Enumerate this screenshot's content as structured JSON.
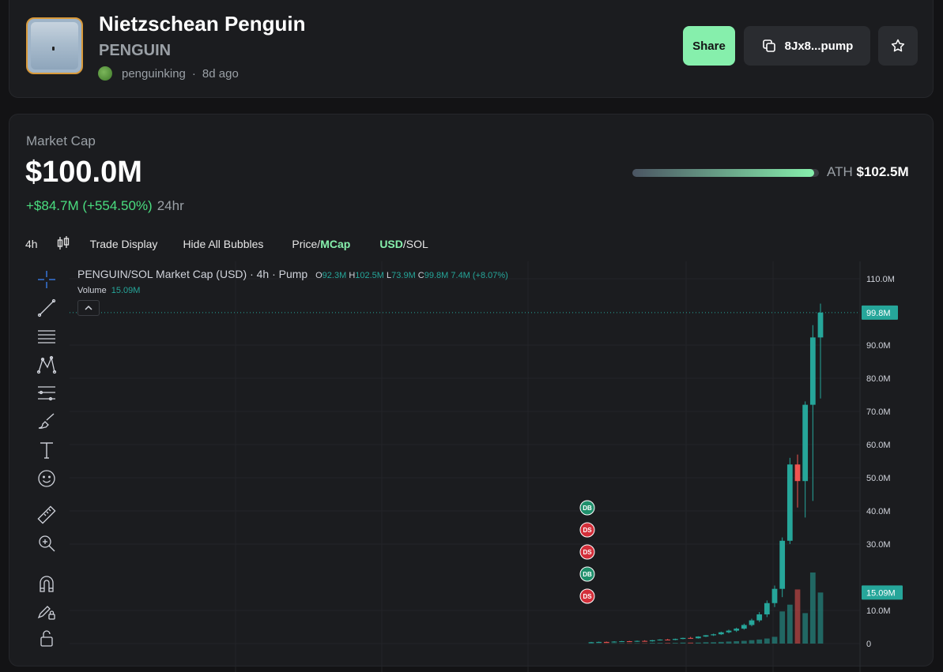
{
  "token": {
    "name": "Nietzschean Penguin",
    "ticker": "PENGUIN",
    "creator": "penguinking",
    "age": "8d ago"
  },
  "actions": {
    "share_label": "Share",
    "address_label": "8Jx8...pump"
  },
  "market": {
    "label": "Market Cap",
    "value": "$100.0M",
    "change": "+$84.7M (+554.50%)",
    "period": "24hr",
    "ath_label": "ATH",
    "ath_value": "$102.5M",
    "ath_progress": 0.976
  },
  "toolbar": {
    "interval": "4h",
    "trade_display": "Trade Display",
    "hide_bubbles": "Hide All Bubbles",
    "price_label": "Price",
    "mcap_label": "MCap",
    "usd_label": "USD",
    "sol_label": "SOL",
    "slash": "/"
  },
  "chart_legend": {
    "title": "PENGUIN/SOL Market Cap (USD) · 4h · Pump",
    "o_label": "O",
    "o_value": "92.3M",
    "h_label": "H",
    "h_value": "102.5M",
    "l_label": "L",
    "l_value": "73.9M",
    "c_label": "C",
    "c_value": "99.8M",
    "change": "7.4M (+8.07%)",
    "volume_label": "Volume",
    "volume_value": "15.09M"
  },
  "colors": {
    "up": "#26a69a",
    "down": "#ef5350",
    "accent": "#86efac"
  },
  "chart_data": {
    "type": "candlestick",
    "y_axis_ticks": [
      "110.0M",
      "90.0M",
      "80.0M",
      "70.0M",
      "60.0M",
      "50.0M",
      "40.0M",
      "30.0M",
      "10.0M",
      "0"
    ],
    "ylim": [
      0,
      110
    ],
    "y_unit": "M",
    "last_price_label": "99.8M",
    "last_price": 99.8,
    "volume_label": "15.09M",
    "bubbles": [
      {
        "label": "DB",
        "side": "buy"
      },
      {
        "label": "DS",
        "side": "sell"
      },
      {
        "label": "DS",
        "side": "sell"
      },
      {
        "label": "DB",
        "side": "buy"
      },
      {
        "label": "DS",
        "side": "sell"
      }
    ],
    "candles": [
      {
        "o": 0.3,
        "h": 0.5,
        "l": 0.2,
        "c": 0.4
      },
      {
        "o": 0.4,
        "h": 0.6,
        "l": 0.3,
        "c": 0.5
      },
      {
        "o": 0.5,
        "h": 0.6,
        "l": 0.3,
        "c": 0.4
      },
      {
        "o": 0.4,
        "h": 0.7,
        "l": 0.3,
        "c": 0.6
      },
      {
        "o": 0.6,
        "h": 0.8,
        "l": 0.5,
        "c": 0.7
      },
      {
        "o": 0.7,
        "h": 0.8,
        "l": 0.5,
        "c": 0.6
      },
      {
        "o": 0.6,
        "h": 0.9,
        "l": 0.5,
        "c": 0.8
      },
      {
        "o": 0.8,
        "h": 1.0,
        "l": 0.6,
        "c": 0.7
      },
      {
        "o": 0.7,
        "h": 1.1,
        "l": 0.6,
        "c": 1.0
      },
      {
        "o": 1.0,
        "h": 1.3,
        "l": 0.9,
        "c": 1.2
      },
      {
        "o": 1.2,
        "h": 1.4,
        "l": 1.0,
        "c": 1.1
      },
      {
        "o": 1.1,
        "h": 1.5,
        "l": 1.0,
        "c": 1.4
      },
      {
        "o": 1.4,
        "h": 1.8,
        "l": 1.3,
        "c": 1.7
      },
      {
        "o": 1.7,
        "h": 2.0,
        "l": 1.5,
        "c": 1.6
      },
      {
        "o": 1.6,
        "h": 2.2,
        "l": 1.5,
        "c": 2.1
      },
      {
        "o": 2.1,
        "h": 2.6,
        "l": 2.0,
        "c": 2.5
      },
      {
        "o": 2.5,
        "h": 3.0,
        "l": 2.3,
        "c": 2.8
      },
      {
        "o": 2.8,
        "h": 3.6,
        "l": 2.6,
        "c": 3.4
      },
      {
        "o": 3.4,
        "h": 4.2,
        "l": 3.1,
        "c": 3.9
      },
      {
        "o": 3.9,
        "h": 4.8,
        "l": 3.5,
        "c": 4.5
      },
      {
        "o": 4.5,
        "h": 6.0,
        "l": 4.2,
        "c": 5.6
      },
      {
        "o": 5.6,
        "h": 7.5,
        "l": 5.2,
        "c": 7.0
      },
      {
        "o": 7.0,
        "h": 9.5,
        "l": 6.5,
        "c": 8.8
      },
      {
        "o": 8.8,
        "h": 13.0,
        "l": 8.0,
        "c": 12.2
      },
      {
        "o": 12.2,
        "h": 17.5,
        "l": 11.0,
        "c": 16.5
      },
      {
        "o": 16.5,
        "h": 32.0,
        "l": 14.0,
        "c": 31.0
      },
      {
        "o": 31.0,
        "h": 56.0,
        "l": 30.0,
        "c": 54.0
      },
      {
        "o": 54.0,
        "h": 57.0,
        "l": 41.0,
        "c": 49.0
      },
      {
        "o": 49.0,
        "h": 73.0,
        "l": 38.0,
        "c": 72.0
      },
      {
        "o": 72.0,
        "h": 96.0,
        "l": 43.0,
        "c": 92.3
      },
      {
        "o": 92.3,
        "h": 102.5,
        "l": 73.9,
        "c": 99.8
      }
    ],
    "volumes": [
      0.1,
      0.1,
      0.1,
      0.1,
      0.1,
      0.1,
      0.1,
      0.1,
      0.2,
      0.2,
      0.2,
      0.2,
      0.3,
      0.3,
      0.3,
      0.4,
      0.4,
      0.5,
      0.6,
      0.7,
      0.8,
      1.0,
      1.2,
      1.5,
      2.0,
      9.5,
      11.5,
      16.0,
      9.0,
      21.0,
      15.09
    ]
  }
}
